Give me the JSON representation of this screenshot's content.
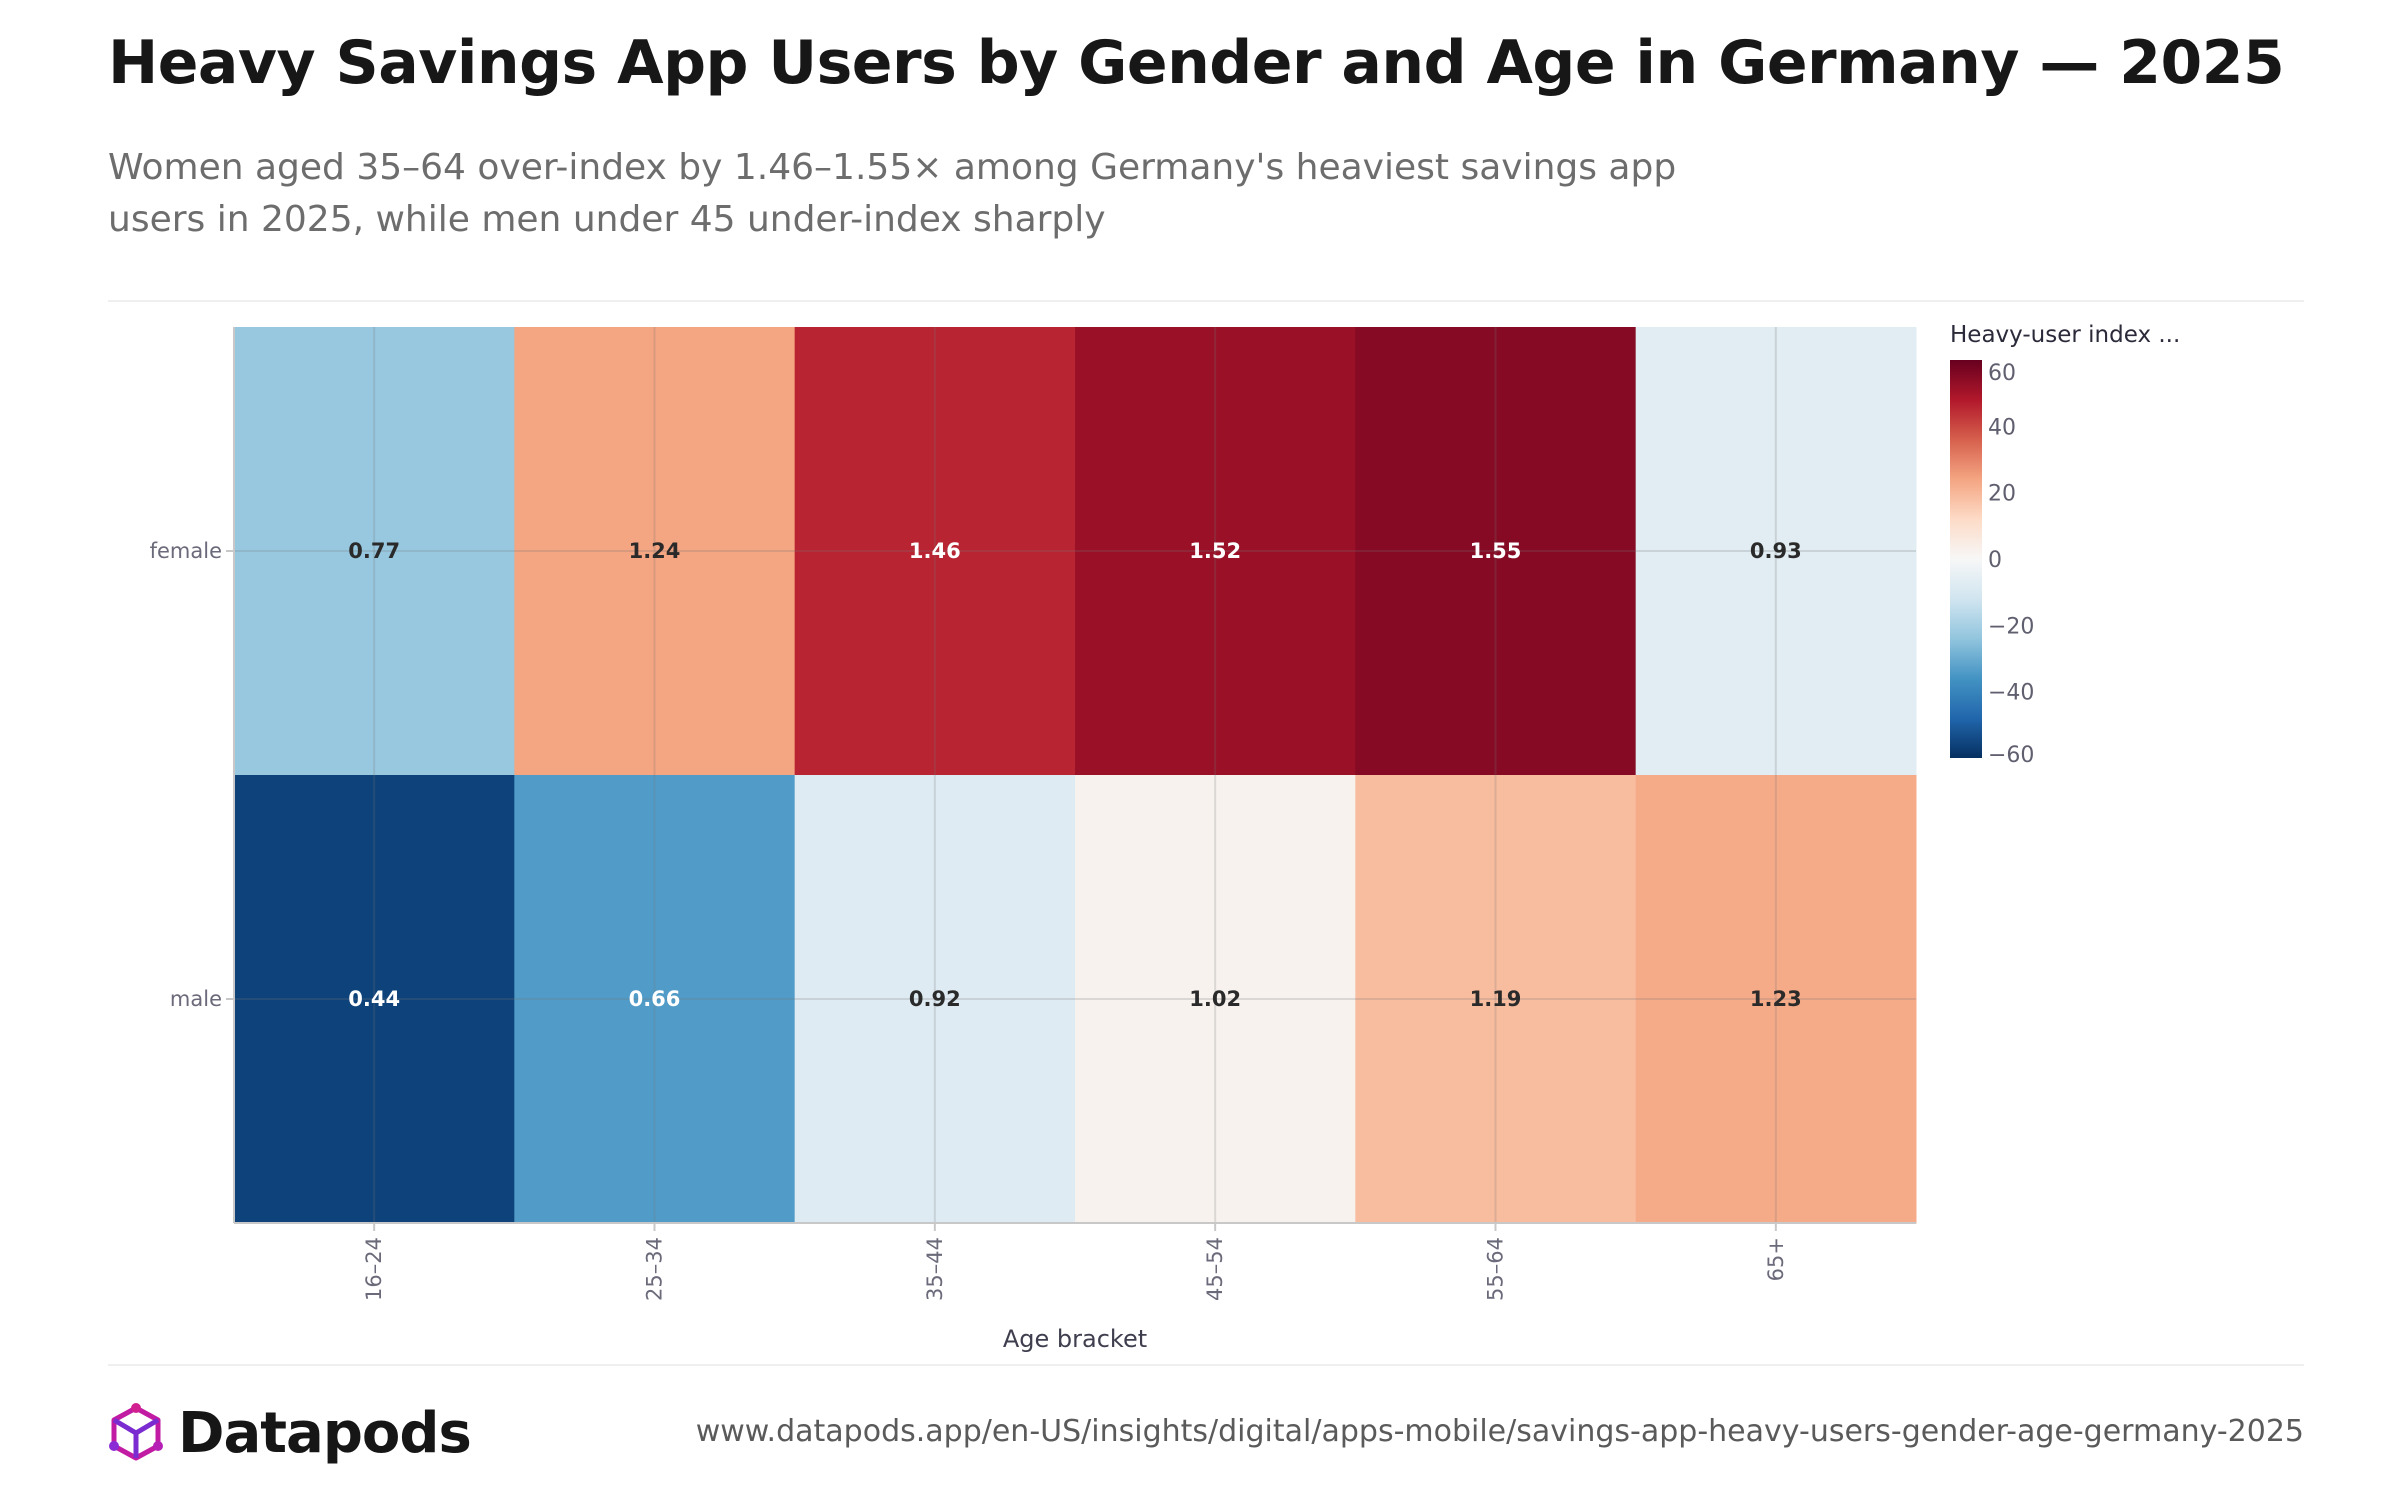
{
  "header": {
    "title": "Heavy Savings App Users by Gender and Age in Germany — 2025",
    "subtitle": "Women aged 35–64 over-index by 1.46–1.55× among Germany's heaviest savings app users in 2025, while men under 45 under-index sharply"
  },
  "footer": {
    "brand": "Datapods",
    "url": "www.datapods.app/en-US/insights/digital/apps-mobile/savings-app-heavy-users-gender-age-germany-2025"
  },
  "chart_data": {
    "type": "heatmap",
    "x": [
      "16–24",
      "25–34",
      "35–44",
      "45–54",
      "55–64",
      "65+"
    ],
    "y": [
      "female",
      "male"
    ],
    "values": [
      [
        0.77,
        1.24,
        1.46,
        1.52,
        1.55,
        0.93
      ],
      [
        0.44,
        0.66,
        0.92,
        1.02,
        1.19,
        1.23
      ]
    ],
    "labels": [
      [
        "0.77",
        "1.24",
        "1.46",
        "1.52",
        "1.55",
        "0.93"
      ],
      [
        "0.44",
        "0.66",
        "0.92",
        "1.02",
        "1.19",
        "1.23"
      ]
    ],
    "xlabel": "Age bracket",
    "ylabel": "",
    "colorbar": {
      "title": "Heavy-user index ...",
      "range": [
        -60,
        60
      ],
      "ticks": [
        60,
        40,
        20,
        0,
        -20,
        -40,
        -60
      ],
      "colorscale": "RdBu",
      "note_color_value": "(index - 1) × 100"
    },
    "grid": true,
    "legend": "right"
  },
  "colors": {
    "scale": [
      "#053061",
      "#2166ac",
      "#4393c3",
      "#92c5de",
      "#d1e5f0",
      "#f7f7f7",
      "#fddbc7",
      "#f4a582",
      "#d6604d",
      "#b2182b",
      "#67001f"
    ]
  }
}
